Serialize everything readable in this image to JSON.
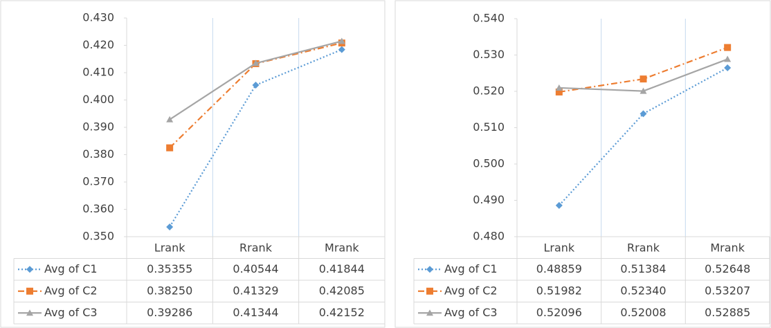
{
  "chart_data": [
    {
      "type": "line",
      "categories": [
        "Lrank",
        "Rrank",
        "Mrank"
      ],
      "ylim": [
        0.35,
        0.43
      ],
      "yticks": [
        {
          "value": 0.35,
          "label": "0.350"
        },
        {
          "value": 0.36,
          "label": "0.360"
        },
        {
          "value": 0.37,
          "label": "0.370"
        },
        {
          "value": 0.38,
          "label": "0.380"
        },
        {
          "value": 0.39,
          "label": "0.390"
        },
        {
          "value": 0.4,
          "label": "0.400"
        },
        {
          "value": 0.41,
          "label": "0.410"
        },
        {
          "value": 0.42,
          "label": "0.420"
        },
        {
          "value": 0.43,
          "label": "0.430"
        }
      ],
      "series": [
        {
          "name": "Avg of C1",
          "color": "#5b9bd5",
          "line_style": "dotted",
          "marker": "diamond",
          "values": [
            0.35355,
            0.40544,
            0.41844
          ],
          "value_labels": [
            "0.35355",
            "0.40544",
            "0.41844"
          ]
        },
        {
          "name": "Avg of C2",
          "color": "#ed7d31",
          "line_style": "dash-dot",
          "marker": "square",
          "values": [
            0.3825,
            0.41329,
            0.42085
          ],
          "value_labels": [
            "0.38250",
            "0.41329",
            "0.42085"
          ]
        },
        {
          "name": "Avg of C3",
          "color": "#a5a5a5",
          "line_style": "solid",
          "marker": "triangle",
          "values": [
            0.39286,
            0.41344,
            0.42152
          ],
          "value_labels": [
            "0.39286",
            "0.41344",
            "0.42152"
          ]
        }
      ]
    },
    {
      "type": "line",
      "categories": [
        "Lrank",
        "Rrank",
        "Mrank"
      ],
      "ylim": [
        0.48,
        0.54
      ],
      "yticks": [
        {
          "value": 0.48,
          "label": "0.480"
        },
        {
          "value": 0.49,
          "label": "0.490"
        },
        {
          "value": 0.5,
          "label": "0.500"
        },
        {
          "value": 0.51,
          "label": "0.510"
        },
        {
          "value": 0.52,
          "label": "0.520"
        },
        {
          "value": 0.53,
          "label": "0.530"
        },
        {
          "value": 0.54,
          "label": "0.540"
        }
      ],
      "series": [
        {
          "name": "Avg of C1",
          "color": "#5b9bd5",
          "line_style": "dotted",
          "marker": "diamond",
          "values": [
            0.48859,
            0.51384,
            0.52648
          ],
          "value_labels": [
            "0.48859",
            "0.51384",
            "0.52648"
          ]
        },
        {
          "name": "Avg of C2",
          "color": "#ed7d31",
          "line_style": "dash-dot",
          "marker": "square",
          "values": [
            0.51982,
            0.5234,
            0.53207
          ],
          "value_labels": [
            "0.51982",
            "0.52340",
            "0.53207"
          ]
        },
        {
          "name": "Avg of C3",
          "color": "#a5a5a5",
          "line_style": "solid",
          "marker": "triangle",
          "values": [
            0.52096,
            0.52008,
            0.52885
          ],
          "value_labels": [
            "0.52096",
            "0.52008",
            "0.52885"
          ]
        }
      ]
    }
  ]
}
